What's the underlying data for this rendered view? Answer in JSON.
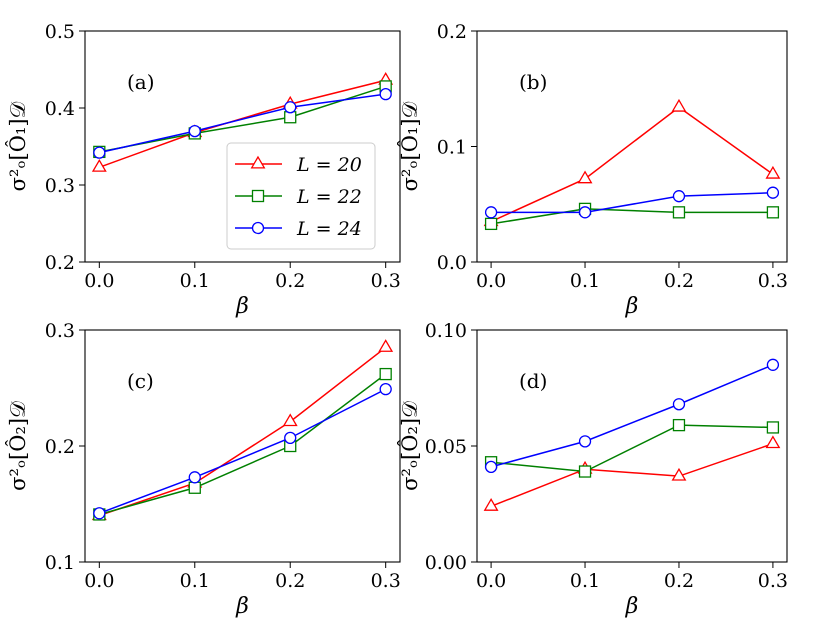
{
  "figure": {
    "legend_labels": [
      "L = 20",
      "L = 22",
      "L = 24"
    ],
    "colors": {
      "L20": "#ff0000",
      "L22": "#008000",
      "L24": "#0000ff"
    },
    "markers": {
      "L20": "triangle",
      "L22": "square",
      "L24": "circle"
    }
  },
  "chart_data": [
    {
      "type": "line",
      "panel_label": "(a)",
      "xlabel": "β",
      "ylabel": "σ²ₒ[Ô₁]𝒟",
      "x": [
        0.0,
        0.1,
        0.2,
        0.3
      ],
      "xticks": [
        "0.0",
        "0.1",
        "0.2",
        "0.3"
      ],
      "ylim": [
        0.2,
        0.5
      ],
      "yticks": [
        0.2,
        0.3,
        0.4,
        0.5
      ],
      "ytick_labels": [
        "0.2",
        "0.3",
        "0.4",
        "0.5"
      ],
      "legend": "center-right",
      "series": [
        {
          "name": "L = 20",
          "values": [
            0.323,
            0.368,
            0.405,
            0.436
          ]
        },
        {
          "name": "L = 22",
          "values": [
            0.343,
            0.367,
            0.388,
            0.428
          ]
        },
        {
          "name": "L = 24",
          "values": [
            0.342,
            0.37,
            0.401,
            0.418
          ]
        }
      ]
    },
    {
      "type": "line",
      "panel_label": "(b)",
      "xlabel": "β",
      "ylabel": "σ²ₒ[Ô₁]𝒟",
      "x": [
        0.0,
        0.1,
        0.2,
        0.3
      ],
      "xticks": [
        "0.0",
        "0.1",
        "0.2",
        "0.3"
      ],
      "ylim": [
        0.0,
        0.2
      ],
      "yticks": [
        0.0,
        0.1,
        0.2
      ],
      "ytick_labels": [
        "0.0",
        "0.1",
        "0.2"
      ],
      "series": [
        {
          "name": "L = 20",
          "values": [
            0.035,
            0.072,
            0.134,
            0.076
          ]
        },
        {
          "name": "L = 22",
          "values": [
            0.033,
            0.046,
            0.043,
            0.043
          ]
        },
        {
          "name": "L = 24",
          "values": [
            0.043,
            0.043,
            0.057,
            0.06
          ]
        }
      ]
    },
    {
      "type": "line",
      "panel_label": "(c)",
      "xlabel": "β",
      "ylabel": "σ²ₒ[Ô₂]𝒟",
      "x": [
        0.0,
        0.1,
        0.2,
        0.3
      ],
      "xticks": [
        "0.0",
        "0.1",
        "0.2",
        "0.3"
      ],
      "ylim": [
        0.1,
        0.3
      ],
      "yticks": [
        0.1,
        0.2,
        0.3
      ],
      "ytick_labels": [
        "0.1",
        "0.2",
        "0.3"
      ],
      "series": [
        {
          "name": "L = 20",
          "values": [
            0.14,
            0.168,
            0.221,
            0.285
          ]
        },
        {
          "name": "L = 22",
          "values": [
            0.141,
            0.164,
            0.2,
            0.262
          ]
        },
        {
          "name": "L = 24",
          "values": [
            0.142,
            0.173,
            0.207,
            0.249
          ]
        }
      ]
    },
    {
      "type": "line",
      "panel_label": "(d)",
      "xlabel": "β",
      "ylabel": "σ²ₒ[Ô₂]𝒟",
      "x": [
        0.0,
        0.1,
        0.2,
        0.3
      ],
      "xticks": [
        "0.0",
        "0.1",
        "0.2",
        "0.3"
      ],
      "ylim": [
        0.0,
        0.1
      ],
      "yticks": [
        0.0,
        0.05,
        0.1
      ],
      "ytick_labels": [
        "0.00",
        "0.05",
        "0.10"
      ],
      "series": [
        {
          "name": "L = 20",
          "values": [
            0.024,
            0.04,
            0.037,
            0.051
          ]
        },
        {
          "name": "L = 22",
          "values": [
            0.043,
            0.039,
            0.059,
            0.058
          ]
        },
        {
          "name": "L = 24",
          "values": [
            0.041,
            0.052,
            0.068,
            0.085
          ]
        }
      ]
    }
  ]
}
